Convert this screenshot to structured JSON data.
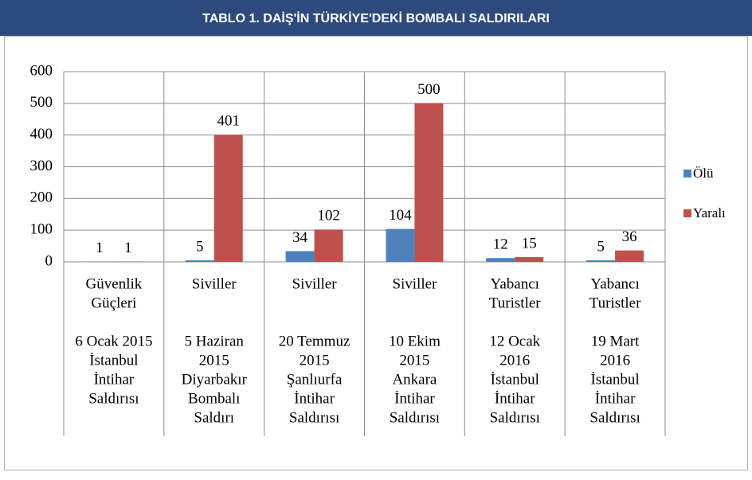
{
  "chart_data": {
    "type": "bar",
    "title": "TABLO 1. DAİŞ'İN TÜRKİYE'DEKİ BOMBALI SALDIRILARI",
    "categories": [
      {
        "group": [
          "Güvenlik",
          "Güçleri"
        ],
        "event": [
          "6 Ocak 2015",
          "İstanbul",
          "İntihar",
          "Saldırısı"
        ]
      },
      {
        "group": [
          "Siviller"
        ],
        "event": [
          "5 Haziran",
          "2015",
          "Diyarbakır",
          "Bombalı",
          "Saldırı"
        ]
      },
      {
        "group": [
          "Siviller"
        ],
        "event": [
          "20 Temmuz",
          "2015",
          "Şanlıurfa",
          "İntihar",
          "Saldırısı"
        ]
      },
      {
        "group": [
          "Siviller"
        ],
        "event": [
          "10 Ekim",
          "2015",
          "Ankara",
          "İntihar",
          "Saldırısı"
        ]
      },
      {
        "group": [
          "Yabancı",
          "Turistler"
        ],
        "event": [
          "12 Ocak",
          "2016",
          "İstanbul",
          "İntihar",
          "Saldırısı"
        ]
      },
      {
        "group": [
          "Yabancı",
          "Turistler"
        ],
        "event": [
          "19 Mart",
          "2016",
          "İstanbul",
          "İntihar",
          "Saldırısı"
        ]
      }
    ],
    "series": [
      {
        "name": "Ölü",
        "color": "#4f81bd",
        "values": [
          1,
          5,
          34,
          104,
          12,
          5
        ]
      },
      {
        "name": "Yaralı",
        "color": "#c0504d",
        "values": [
          1,
          401,
          102,
          500,
          15,
          36
        ]
      }
    ],
    "ylim": [
      0,
      600
    ],
    "yticks": [
      0,
      100,
      200,
      300,
      400,
      500,
      600
    ],
    "grid": true,
    "legend": "right"
  }
}
